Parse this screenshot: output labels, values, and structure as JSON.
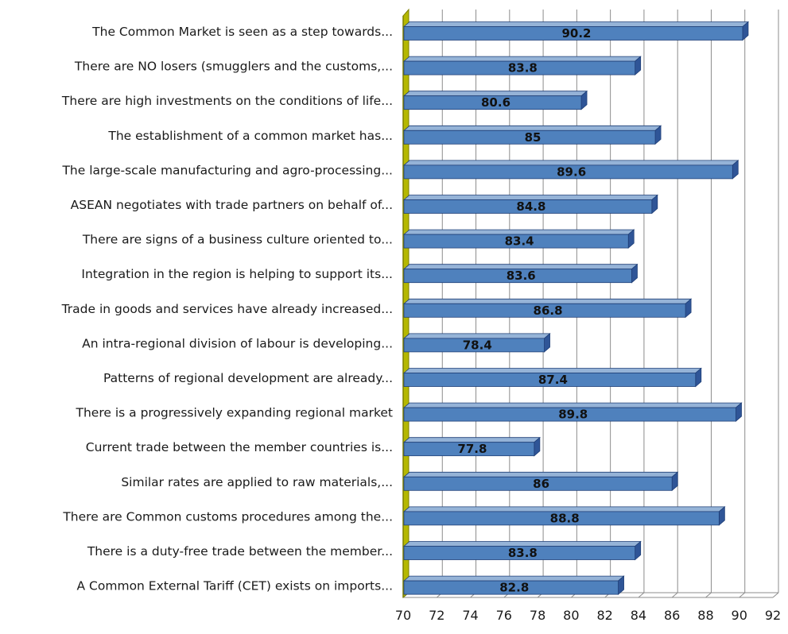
{
  "chart_data": {
    "type": "bar",
    "orientation": "horizontal",
    "style": "3d",
    "categories": [
      "The Common Market is seen as a step towards...",
      "There are NO losers (smugglers and the customs,...",
      "There are high investments on the conditions of life...",
      "The establishment of a common market has...",
      "The large-scale manufacturing and agro-processing...",
      "ASEAN negotiates with trade partners on behalf of...",
      "There are signs of a business culture oriented to...",
      "Integration in the region is helping to support its...",
      "Trade in goods and services have already increased...",
      "An intra-regional division of labour is developing...",
      "Patterns of regional development are already...",
      "There is a progressively expanding regional market",
      "Current trade between the member countries is...",
      "Similar rates are applied to raw materials,...",
      "There are Common customs procedures among the...",
      "There is a duty-free trade between the member...",
      "A Common External Tariff (CET) exists on imports..."
    ],
    "values": [
      90.2,
      83.8,
      80.6,
      85,
      89.6,
      84.8,
      83.4,
      83.6,
      86.8,
      78.4,
      87.4,
      89.8,
      77.8,
      86,
      88.8,
      83.8,
      82.8
    ],
    "value_labels": [
      "90.2",
      "83.8",
      "80.6",
      "85",
      "89.6",
      "84.8",
      "83.4",
      "83.6",
      "86.8",
      "78.4",
      "87.4",
      "89.8",
      "77.8",
      "86",
      "88.8",
      "83.8",
      "82.8"
    ],
    "xlim": [
      70,
      92
    ],
    "xticks": [
      70,
      72,
      74,
      76,
      78,
      80,
      82,
      84,
      86,
      88,
      90,
      92
    ],
    "xtick_labels": [
      "70",
      "72",
      "74",
      "76",
      "78",
      "80",
      "82",
      "84",
      "86",
      "88",
      "90",
      "92"
    ],
    "grid": "vertical",
    "legend": "none",
    "title": "",
    "xlabel": "",
    "ylabel": "",
    "colors": {
      "bar_front": "#4f81bd",
      "bar_top": "#95b3d7",
      "bar_side": "#2f5597",
      "bar_edge": "#1f3f77",
      "wall": "#b5b800",
      "wall_dark": "#7d7f00",
      "grid": "#8c8c8c"
    }
  }
}
